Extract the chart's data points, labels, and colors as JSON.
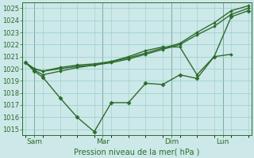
{
  "xlabel": "Pression niveau de la mer( hPa )",
  "ylim": [
    1014.5,
    1025.5
  ],
  "yticks": [
    1015,
    1016,
    1017,
    1018,
    1019,
    1020,
    1021,
    1022,
    1023,
    1024,
    1025
  ],
  "bg_color": "#cce8e8",
  "grid_color": "#99cccc",
  "line_color": "#2d6b2d",
  "tick_label_color": "#2d6b2d",
  "day_labels": [
    "Sam",
    "Mar",
    "Dim",
    "Lun"
  ],
  "day_positions": [
    0.5,
    4.5,
    8.5,
    11.5
  ],
  "vline_positions": [
    0.5,
    4.5,
    8.5,
    11.5
  ],
  "xlim": [
    -0.2,
    13.2
  ],
  "series": [
    {
      "x": [
        0,
        0.5,
        1,
        2,
        3,
        4,
        5,
        6,
        7,
        8,
        9,
        10,
        11,
        12,
        13
      ],
      "y": [
        1020.5,
        1019.8,
        1019.3,
        1017.6,
        1016.0,
        1014.8,
        1017.2,
        1017.2,
        1018.8,
        1018.7,
        1019.5,
        1019.2,
        1021.0,
        1024.3,
        1024.8
      ],
      "marker": "D",
      "markersize": 2.5,
      "linewidth": 1.0
    },
    {
      "x": [
        0,
        0.5,
        1,
        2,
        3,
        4,
        5,
        6,
        7,
        8,
        9,
        10,
        11,
        12,
        13
      ],
      "y": [
        1020.5,
        1020.0,
        1019.8,
        1020.0,
        1020.2,
        1020.3,
        1020.5,
        1020.8,
        1021.2,
        1021.6,
        1022.0,
        1022.8,
        1023.5,
        1024.5,
        1025.0
      ],
      "marker": "D",
      "markersize": 1.8,
      "linewidth": 1.0
    },
    {
      "x": [
        0,
        0.5,
        1,
        2,
        3,
        4,
        5,
        6,
        7,
        8,
        9,
        10,
        11,
        12,
        13
      ],
      "y": [
        1020.5,
        1020.0,
        1019.8,
        1020.1,
        1020.3,
        1020.4,
        1020.6,
        1020.9,
        1021.3,
        1021.7,
        1022.1,
        1023.0,
        1023.8,
        1024.8,
        1025.2
      ],
      "marker": "D",
      "markersize": 1.8,
      "linewidth": 1.0
    },
    {
      "x": [
        0,
        0.5,
        1,
        2,
        3,
        4,
        5,
        6,
        7,
        8,
        9,
        10,
        11,
        12
      ],
      "y": [
        1020.5,
        1019.9,
        1019.5,
        1019.8,
        1020.1,
        1020.3,
        1020.6,
        1021.0,
        1021.5,
        1021.8,
        1021.8,
        1019.5,
        1021.0,
        1021.2
      ],
      "marker": "D",
      "markersize": 1.8,
      "linewidth": 1.0
    }
  ]
}
